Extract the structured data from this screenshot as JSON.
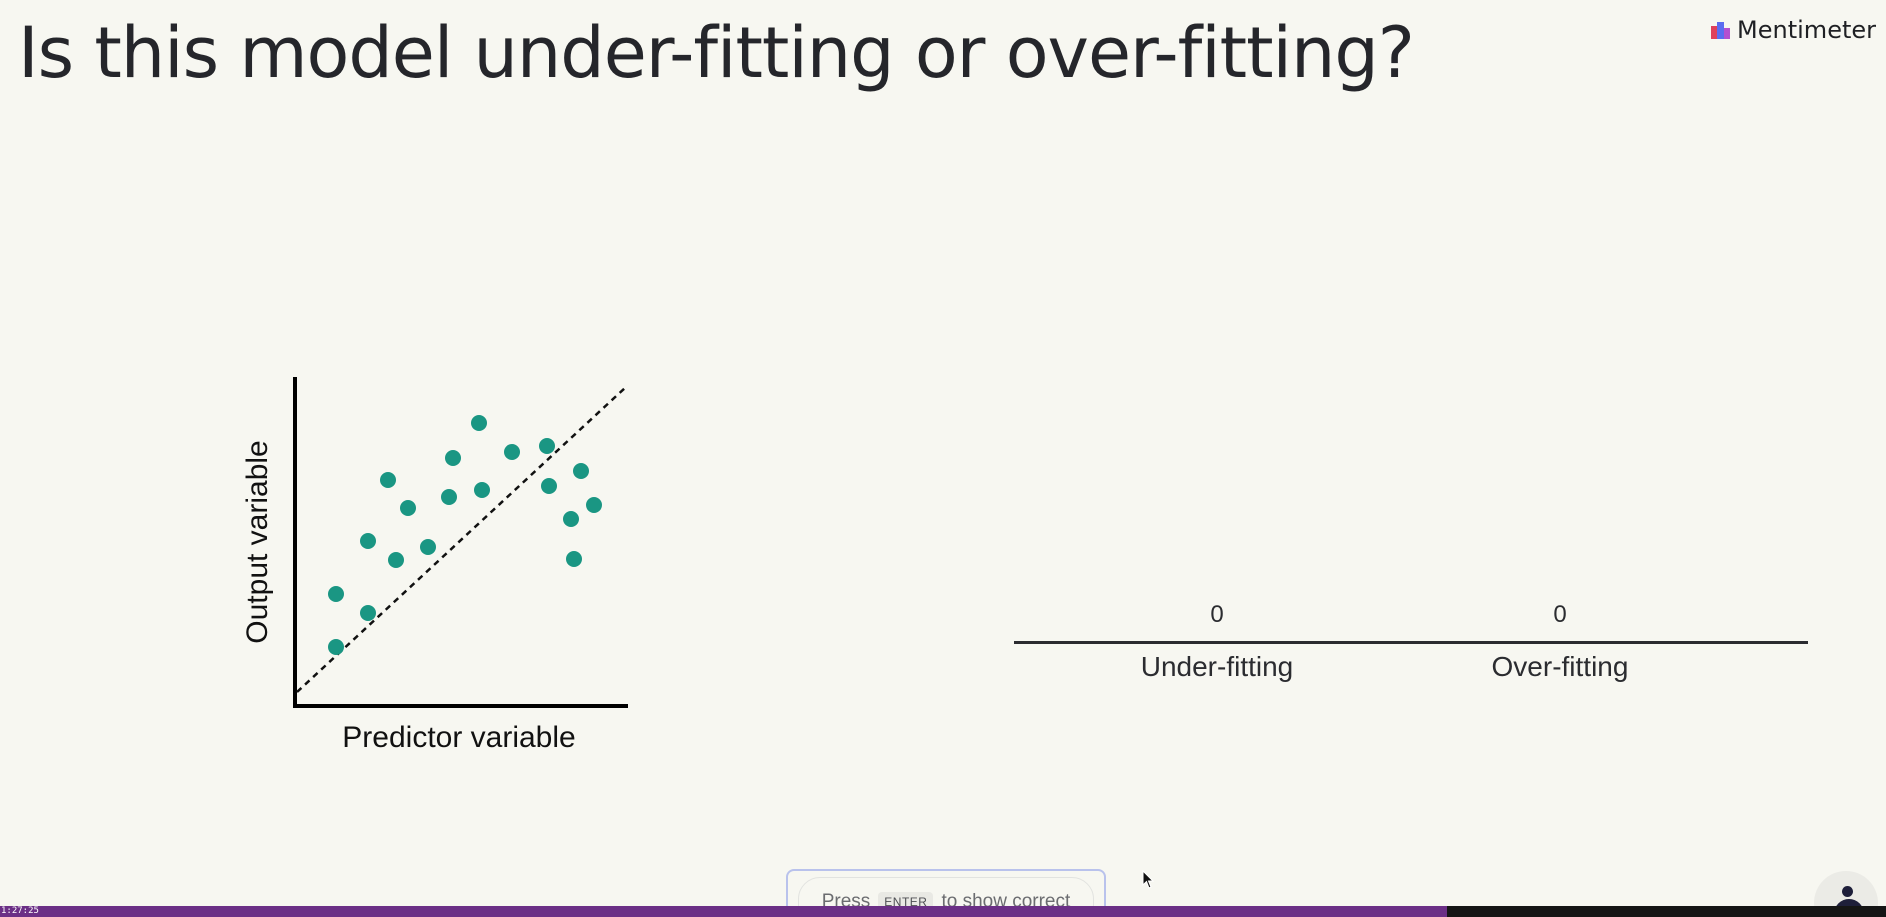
{
  "slide": {
    "title": "Is this model under-fitting or over-fitting?"
  },
  "brand": {
    "name": "Mentimeter",
    "icon": "mentimeter-logo-icon",
    "colors": [
      "#e0405a",
      "#5b6cf0",
      "#b44fd0"
    ]
  },
  "illustration": {
    "ylabel": "Output variable",
    "xlabel": "Predictor variable",
    "point_color": "#1a9683",
    "fit_line_style": "dashed"
  },
  "results": {
    "options": [
      {
        "label": "Under-fitting",
        "count": "0"
      },
      {
        "label": "Over-fitting",
        "count": "0"
      }
    ]
  },
  "hint": {
    "press": "Press",
    "key": "ENTER",
    "rest": "to show correct"
  },
  "video": {
    "timestamp": "1:27:25",
    "progress": 0.767,
    "progress_color": "#6b2f86"
  }
}
